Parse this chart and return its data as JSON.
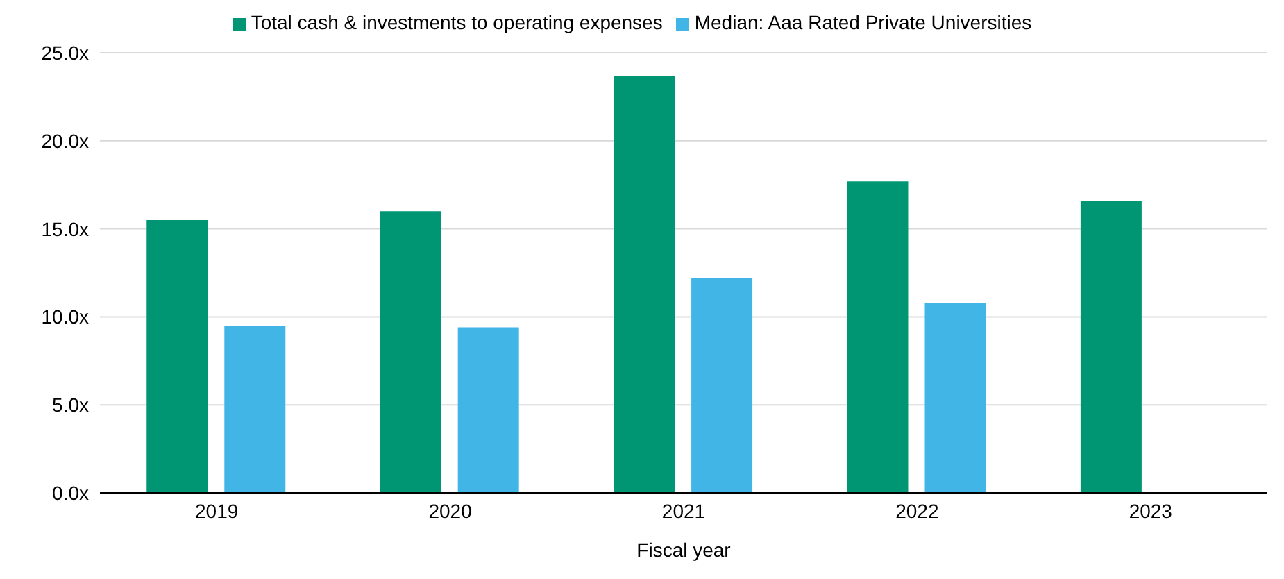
{
  "chart_data": {
    "type": "bar",
    "xlabel": "Fiscal year",
    "categories": [
      "2019",
      "2020",
      "2021",
      "2022",
      "2023"
    ],
    "series": [
      {
        "name": "Total cash & investments to operating expenses",
        "color": "#009673",
        "values": [
          15.5,
          16.0,
          23.7,
          17.7,
          16.6
        ]
      },
      {
        "name": "Median: Aaa Rated Private Universities",
        "color": "#41b6e6",
        "values": [
          9.5,
          9.4,
          12.2,
          10.8,
          null
        ]
      }
    ],
    "ylim": [
      0,
      25
    ],
    "yticks": [
      {
        "value": 0,
        "label": "0.0x"
      },
      {
        "value": 5,
        "label": "5.0x"
      },
      {
        "value": 10,
        "label": "10.0x"
      },
      {
        "value": 15,
        "label": "15.0x"
      },
      {
        "value": 20,
        "label": "20.0x"
      },
      {
        "value": 25,
        "label": "25.0x"
      }
    ],
    "grid": "y",
    "legend": "top"
  }
}
